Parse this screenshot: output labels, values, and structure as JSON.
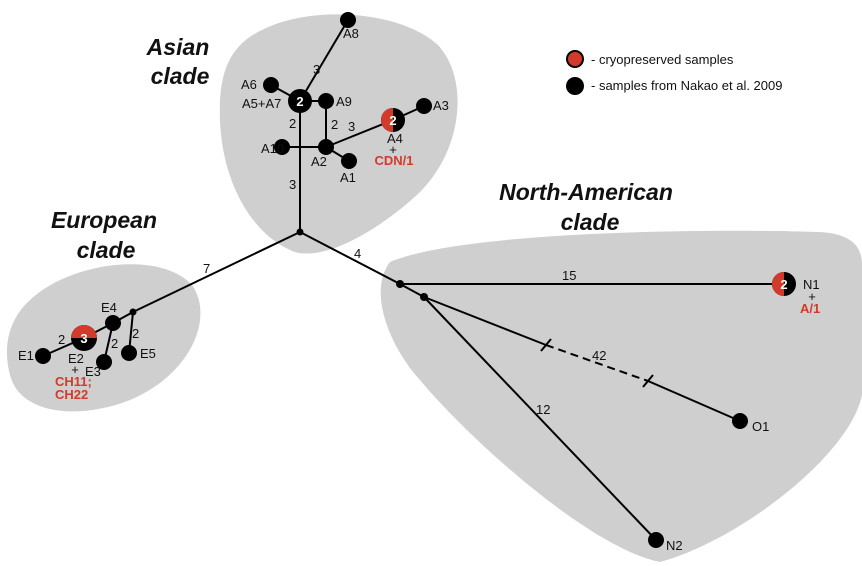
{
  "legend": {
    "cryo_label": "- cryopreserved samples",
    "nakao_label": "- samples from Nakao et al. 2009",
    "cryo_color": "#d23a2c",
    "nakao_color": "#000000"
  },
  "clades": {
    "asian": [
      "Asian",
      "clade"
    ],
    "european": [
      "European",
      "clade"
    ],
    "north_american": [
      "North-American",
      "clade"
    ]
  },
  "colors": {
    "clade_fill": "#cfcfcf",
    "red_text": "#d23a2c"
  },
  "nodes": {
    "A1": "A1",
    "A2": "A2",
    "A3": "A3",
    "A4": "A4",
    "A5A7": "A5+A7",
    "A6": "A6",
    "A8": "A8",
    "A9": "A9",
    "A10": "A10",
    "E1": "E1",
    "E2": "E2",
    "E3": "E3",
    "E4": "E4",
    "E5": "E5",
    "N1": "N1",
    "N2": "N2",
    "O1": "O1"
  },
  "node_counts": {
    "A4": "2",
    "A5A7": "2",
    "E2": "3",
    "N1": "2"
  },
  "cryo_samples": {
    "A4": [
      "CDN/1"
    ],
    "E2": [
      "CH11;",
      "CH22"
    ],
    "N1": [
      "A/1"
    ]
  },
  "plus_sign": "+",
  "edge_labels": {
    "a8": "3",
    "a5_a10": "2",
    "a9_a2": "2",
    "a2_a4": "3",
    "asian_stem": "3",
    "european_stem": "7",
    "na_stem": "4",
    "n1": "15",
    "o1": "42",
    "n2": "12",
    "e2_e1": "2",
    "e4_e3": "2",
    "e4_e5": "2"
  }
}
